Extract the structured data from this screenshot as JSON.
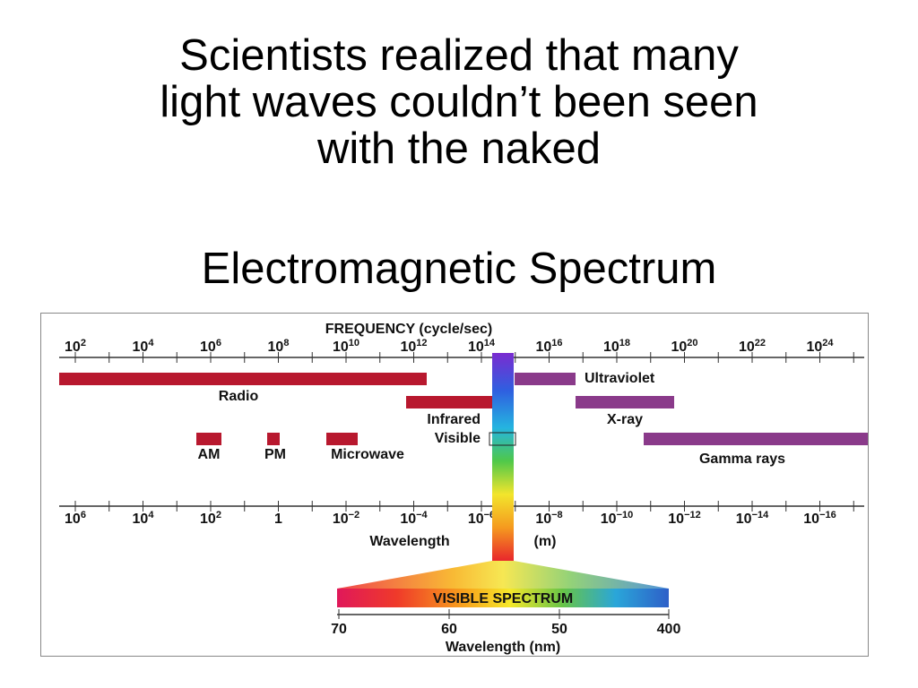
{
  "slide": {
    "title_lines": [
      "Scientists realized that many",
      "light waves couldn’t been seen",
      "with the naked"
    ],
    "subtitle": "Electromagnetic Spectrum"
  },
  "diagram": {
    "frequency_header": "FREQUENCY (cycle/sec)",
    "frequency_ticks": [
      {
        "base": "10",
        "exp": "2"
      },
      {
        "base": "10",
        "exp": "4"
      },
      {
        "base": "10",
        "exp": "6"
      },
      {
        "base": "10",
        "exp": "8"
      },
      {
        "base": "10",
        "exp": "10"
      },
      {
        "base": "10",
        "exp": "12"
      },
      {
        "base": "10",
        "exp": "14"
      },
      {
        "base": "10",
        "exp": "16"
      },
      {
        "base": "10",
        "exp": "18"
      },
      {
        "base": "10",
        "exp": "20"
      },
      {
        "base": "10",
        "exp": "22"
      },
      {
        "base": "10",
        "exp": "24"
      }
    ],
    "wavelength_ticks": [
      {
        "base": "10",
        "exp": "6"
      },
      {
        "base": "10",
        "exp": "4"
      },
      {
        "base": "10",
        "exp": "2"
      },
      {
        "base": "1",
        "exp": ""
      },
      {
        "base": "10",
        "exp": "−2"
      },
      {
        "base": "10",
        "exp": "−4"
      },
      {
        "base": "10",
        "exp": "−6"
      },
      {
        "base": "10",
        "exp": "−8"
      },
      {
        "base": "10",
        "exp": "−10"
      },
      {
        "base": "10",
        "exp": "−12"
      },
      {
        "base": "10",
        "exp": "−14"
      },
      {
        "base": "10",
        "exp": "−16"
      }
    ],
    "wavelength_label": "Wavelength",
    "wavelength_unit": "(m)",
    "bands": {
      "radio": "Radio",
      "infrared": "Infrared",
      "visible": "Visible",
      "ultraviolet": "Ultraviolet",
      "xray": "X-ray",
      "gamma": "Gamma rays",
      "am": "AM",
      "pm": "PM",
      "microwave": "Microwave"
    },
    "visible_spectrum": {
      "label": "VISIBLE SPECTRUM",
      "ticks": [
        "70",
        "60",
        "50",
        "400"
      ],
      "axis_label": "Wavelength (nm)"
    },
    "colors": {
      "radio_band": "#b8182e",
      "high_energy_band": "#8a3a8a"
    }
  }
}
